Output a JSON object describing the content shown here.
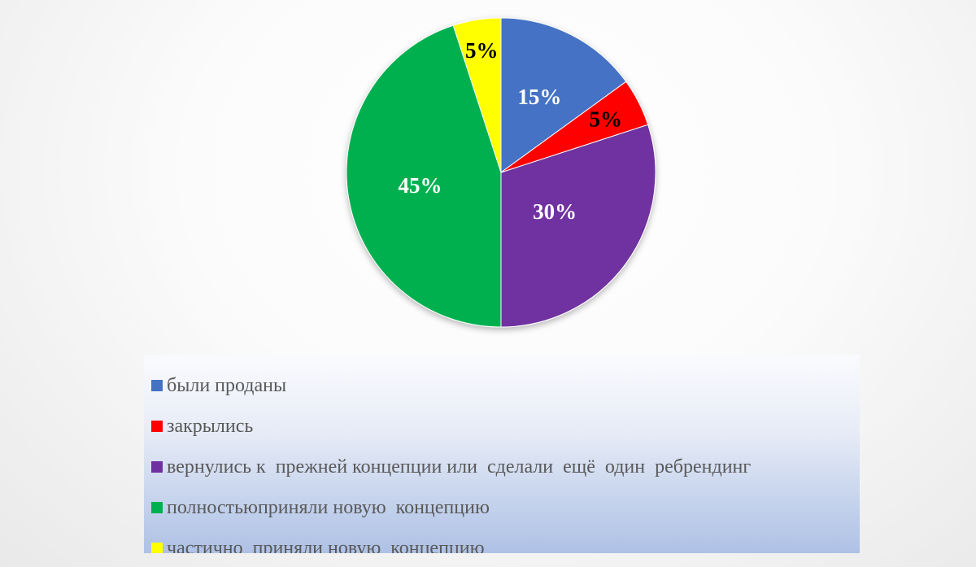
{
  "chart_data": {
    "type": "pie",
    "title": "",
    "labels": [
      "были проданы",
      "закрылись",
      "вернулись к  прежней концепции или  сделали  ещё  один  ребрендинг",
      "полностьюприняли новую  концепцию",
      "частично  приняли новую  концепцию"
    ],
    "values": [
      15,
      5,
      30,
      45,
      5
    ],
    "value_labels": [
      "15%",
      "5%",
      "30%",
      "45%",
      "5%"
    ],
    "colors": [
      "#4472C4",
      "#FF0000",
      "#7030A0",
      "#00B050",
      "#FFFF00"
    ],
    "label_colors": [
      "#FFFFFF",
      "#000000",
      "#FFFFFF",
      "#FFFFFF",
      "#000000"
    ],
    "start_angle": "12 o'clock",
    "direction": "clockwise",
    "legend_position": "bottom"
  }
}
